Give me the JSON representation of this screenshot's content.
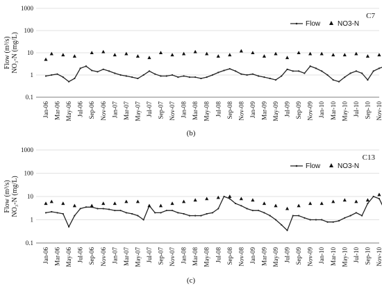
{
  "chart_data": [
    {
      "type": "line",
      "title": "C7",
      "caption": "(b)",
      "ylabel_line1": "Flow (m³/s)",
      "ylabel_line2": "NO₃-N (mg/L)",
      "yscale": "log",
      "ylim": [
        0.1,
        1000
      ],
      "yticks": [
        "0.1",
        "1",
        "10",
        "100",
        "1000"
      ],
      "grid": "horizontal",
      "legend_position": "top-right",
      "x_tick_labels": [
        "Jan-06",
        "Mar-06",
        "May-06",
        "Jul-06",
        "Sep-06",
        "Nov-06",
        "Jan-07",
        "Mar-07",
        "May-07",
        "Jul-07",
        "Sep-07",
        "Nov-07",
        "Jan-08",
        "Mar-08",
        "May-08",
        "Jul-08",
        "Sep-08",
        "Nov-08",
        "Jan-09",
        "Mar-09",
        "May-09",
        "Jul-09",
        "Sep-09",
        "Nov-09",
        "Jan-10",
        "Mar-10",
        "May-10",
        "Jul-10",
        "Sep-10",
        "Nov-10"
      ],
      "series": [
        {
          "name": "Flow",
          "style": "line-dots",
          "x": [
            "2006-01",
            "2006-02",
            "2006-03",
            "2006-04",
            "2006-05",
            "2006-06",
            "2006-07",
            "2006-08",
            "2006-09",
            "2006-10",
            "2006-11",
            "2006-12",
            "2007-01",
            "2007-02",
            "2007-03",
            "2007-04",
            "2007-05",
            "2007-06",
            "2007-07",
            "2007-08",
            "2007-09",
            "2007-10",
            "2007-11",
            "2007-12",
            "2008-01",
            "2008-02",
            "2008-03",
            "2008-04",
            "2008-05",
            "2008-06",
            "2008-07",
            "2008-08",
            "2008-09",
            "2008-10",
            "2008-11",
            "2008-12",
            "2009-01",
            "2009-02",
            "2009-03",
            "2009-04",
            "2009-05",
            "2009-06",
            "2009-07",
            "2009-08",
            "2009-09",
            "2009-10",
            "2009-11",
            "2009-12",
            "2010-01",
            "2010-02",
            "2010-03",
            "2010-04",
            "2010-05",
            "2010-06",
            "2010-07",
            "2010-08",
            "2010-09",
            "2010-10",
            "2010-11",
            "2010-12"
          ],
          "values": [
            0.9,
            1.0,
            1.1,
            0.8,
            0.5,
            0.7,
            2.0,
            2.5,
            1.6,
            1.4,
            1.8,
            1.5,
            1.2,
            1.0,
            0.9,
            0.8,
            0.7,
            1.0,
            1.5,
            1.1,
            0.9,
            0.9,
            1.0,
            0.8,
            0.9,
            0.8,
            0.8,
            0.7,
            0.8,
            1.0,
            1.3,
            1.6,
            1.9,
            1.5,
            1.1,
            1.0,
            1.1,
            0.9,
            0.8,
            0.7,
            0.6,
            0.9,
            1.8,
            1.5,
            1.5,
            1.2,
            2.5,
            2.0,
            1.5,
            1.0,
            0.6,
            0.5,
            0.8,
            1.2,
            1.5,
            1.2,
            0.6,
            1.5,
            2.0,
            2.5
          ]
        },
        {
          "name": "NO3-N",
          "style": "triangles",
          "x": [
            "2006-01",
            "2006-02",
            "2006-04",
            "2006-06",
            "2006-09",
            "2006-11",
            "2007-01",
            "2007-03",
            "2007-05",
            "2007-07",
            "2007-09",
            "2007-11",
            "2008-01",
            "2008-03",
            "2008-05",
            "2008-07",
            "2008-09",
            "2008-11",
            "2009-01",
            "2009-03",
            "2009-05",
            "2009-07",
            "2009-09",
            "2009-11",
            "2010-01",
            "2010-03",
            "2010-05",
            "2010-07",
            "2010-09",
            "2010-11"
          ],
          "values": [
            5,
            9,
            8,
            7,
            10,
            11,
            8,
            9,
            7,
            6,
            10,
            8,
            9,
            11,
            9,
            7,
            8,
            12,
            10,
            7,
            9,
            6,
            10,
            9,
            9,
            8,
            8,
            9,
            7,
            8
          ]
        }
      ]
    },
    {
      "type": "line",
      "title": "C13",
      "caption": "(c)",
      "ylabel_line1": "Flow (m³/s)",
      "ylabel_line2": "NO₃-N (mg/L)",
      "yscale": "log",
      "ylim": [
        0.1,
        1000
      ],
      "yticks": [
        "0.1",
        "1",
        "10",
        "100",
        "1000"
      ],
      "grid": "horizontal",
      "legend_position": "top-right",
      "x_tick_labels": [
        "Jan-06",
        "Mar-06",
        "May-06",
        "Jul-06",
        "Sep-06",
        "Nov-06",
        "Jan-07",
        "Mar-07",
        "May-07",
        "Jul-07",
        "Sep-07",
        "Nov-07",
        "Jan-08",
        "Mar-08",
        "May-08",
        "Jul-08",
        "Sep-08",
        "Nov-08",
        "Jan-09",
        "Mar-09",
        "May-09",
        "Jul-09",
        "Sep-09",
        "Nov-09",
        "Jan-10",
        "Mar-10",
        "May-10",
        "Jul-10",
        "Sep-10",
        "Nov-10"
      ],
      "series": [
        {
          "name": "Flow",
          "style": "line-dots",
          "x": [
            "2006-01",
            "2006-02",
            "2006-03",
            "2006-04",
            "2006-05",
            "2006-06",
            "2006-07",
            "2006-08",
            "2006-09",
            "2006-10",
            "2006-11",
            "2006-12",
            "2007-01",
            "2007-02",
            "2007-03",
            "2007-04",
            "2007-05",
            "2007-06",
            "2007-07",
            "2007-08",
            "2007-09",
            "2007-10",
            "2007-11",
            "2007-12",
            "2008-01",
            "2008-02",
            "2008-03",
            "2008-04",
            "2008-05",
            "2008-06",
            "2008-07",
            "2008-08",
            "2008-09",
            "2008-10",
            "2008-11",
            "2008-12",
            "2009-01",
            "2009-02",
            "2009-03",
            "2009-04",
            "2009-05",
            "2009-06",
            "2009-07",
            "2009-08",
            "2009-09",
            "2009-10",
            "2009-11",
            "2009-12",
            "2010-01",
            "2010-02",
            "2010-03",
            "2010-04",
            "2010-05",
            "2010-06",
            "2010-07",
            "2010-08",
            "2010-09",
            "2010-10",
            "2010-11",
            "2010-12"
          ],
          "values": [
            2.0,
            2.2,
            2.0,
            1.8,
            0.5,
            1.5,
            3.0,
            3.5,
            3.5,
            3.0,
            3.0,
            2.8,
            2.5,
            2.5,
            2.0,
            1.8,
            1.5,
            1.0,
            4.0,
            2.0,
            2.0,
            2.5,
            2.5,
            2.0,
            1.8,
            1.5,
            1.5,
            1.5,
            1.8,
            2.0,
            3.0,
            10.0,
            8.0,
            5.0,
            4.0,
            3.0,
            2.5,
            2.5,
            2.0,
            1.5,
            1.0,
            0.6,
            0.35,
            1.5,
            1.5,
            1.2,
            1.0,
            1.0,
            1.0,
            0.8,
            0.8,
            0.9,
            1.2,
            1.5,
            2.0,
            1.5,
            5.0,
            10.0,
            8.0,
            2.5
          ]
        },
        {
          "name": "NO3-N",
          "style": "triangles",
          "x": [
            "2006-01",
            "2006-02",
            "2006-04",
            "2006-06",
            "2006-09",
            "2006-11",
            "2007-01",
            "2007-03",
            "2007-05",
            "2007-07",
            "2007-09",
            "2007-11",
            "2008-01",
            "2008-03",
            "2008-05",
            "2008-07",
            "2008-09",
            "2008-11",
            "2009-01",
            "2009-03",
            "2009-05",
            "2009-07",
            "2009-09",
            "2009-11",
            "2010-01",
            "2010-03",
            "2010-05",
            "2010-07",
            "2010-09",
            "2010-11"
          ],
          "values": [
            5,
            6,
            5,
            4,
            4,
            5,
            5,
            6,
            6,
            4,
            4,
            5,
            6,
            7,
            8,
            9,
            10,
            8,
            7,
            5,
            4,
            3,
            4,
            5,
            5,
            6,
            7,
            6,
            7,
            12
          ]
        }
      ]
    }
  ]
}
